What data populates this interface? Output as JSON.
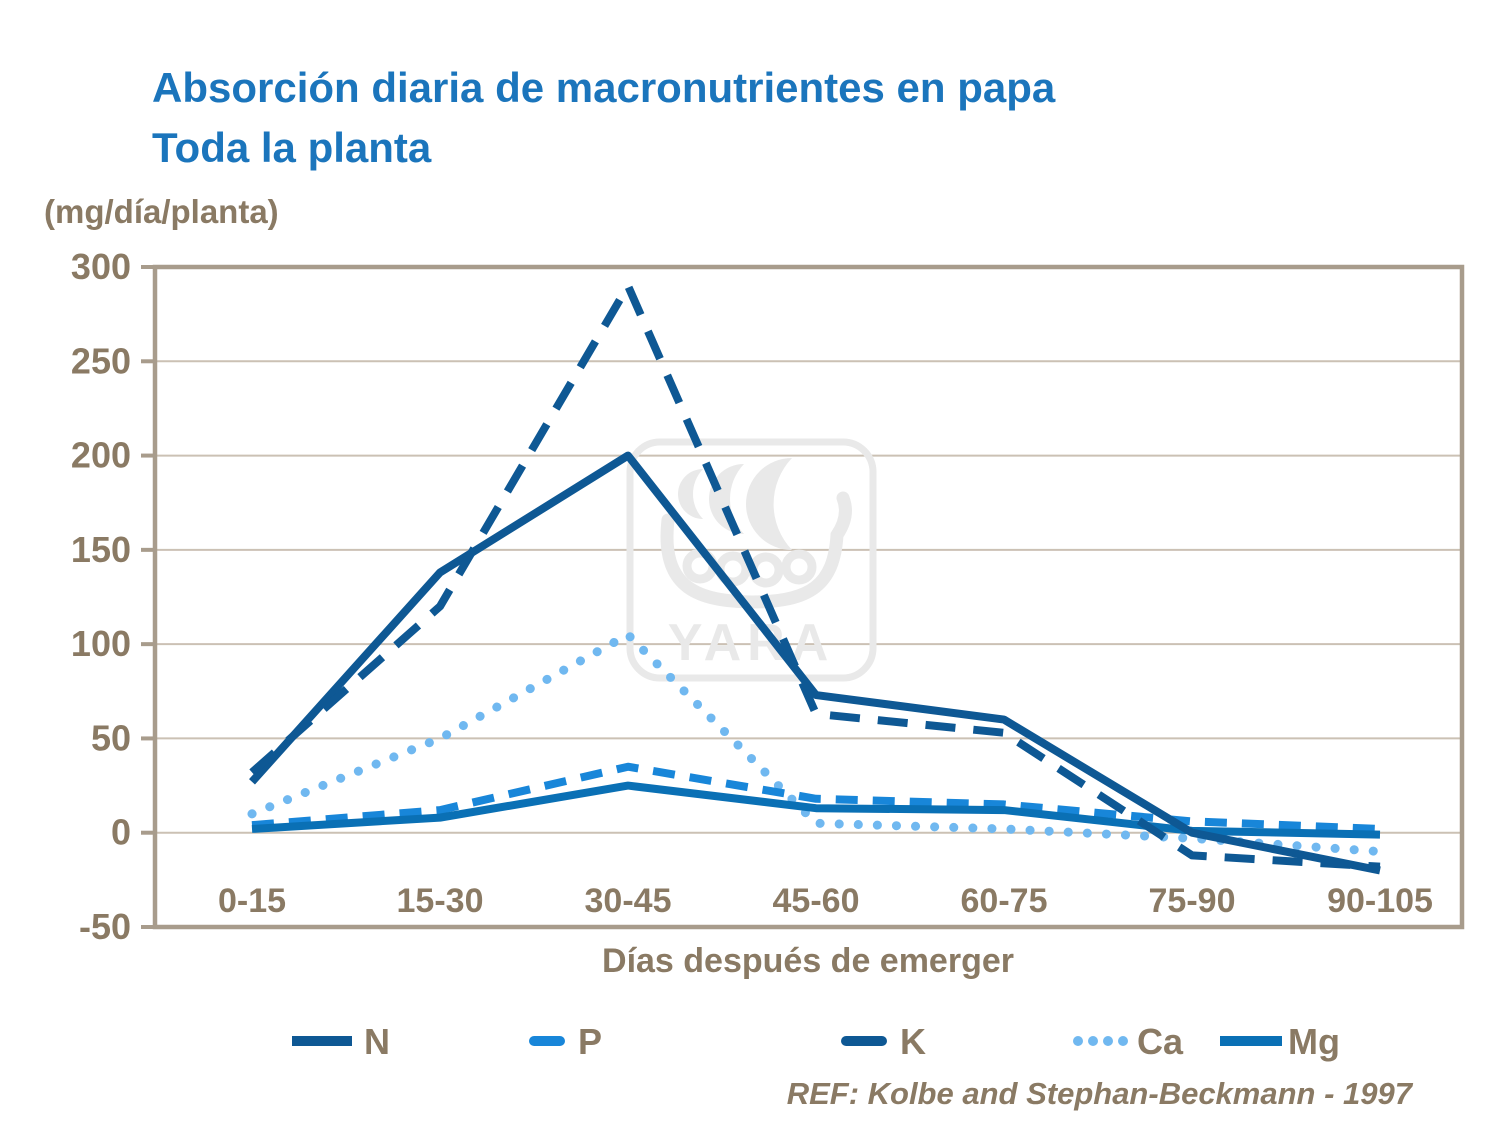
{
  "title": {
    "line1": "Absorción diaria de macronutrientes en papa",
    "line2": "Toda la planta"
  },
  "unit_label": "(mg/día/planta)",
  "x_axis_title": "Días después de emerger",
  "ref_text": "REF: Kolbe and Stephan-Beckmann - 1997",
  "watermark": {
    "text": "YARA"
  },
  "colors": {
    "title_blue": "#1b75bc",
    "label_brown": "#8a7a64",
    "axis_brown": "#a89c8c",
    "grid_brown": "#cbc1b4",
    "dark_blue": "#0e5894",
    "mid_blue": "#0a70b5",
    "bright_blue": "#1886d9",
    "light_blue": "#70b8f0",
    "watermark_gray": "#e9e9e9"
  },
  "chart_data": {
    "type": "line",
    "title": "Absorción diaria de macronutrientes en papa - Toda la planta",
    "xlabel": "Días después de emerger",
    "ylabel": "(mg/día/planta)",
    "categories": [
      "0-15",
      "15-30",
      "30-45",
      "45-60",
      "60-75",
      "75-90",
      "90-105"
    ],
    "yticks": [
      300,
      250,
      200,
      150,
      100,
      50,
      0,
      -50
    ],
    "ylim": [
      -50,
      300
    ],
    "grid": true,
    "legend_position": "bottom",
    "series": [
      {
        "name": "N",
        "style": "solid",
        "color": "#0e5894",
        "values": [
          27,
          138,
          200,
          73,
          60,
          0,
          -20
        ]
      },
      {
        "name": "P",
        "style": "dashed",
        "color": "#1886d9",
        "values": [
          4,
          12,
          35,
          18,
          15,
          6,
          2
        ]
      },
      {
        "name": "K",
        "style": "dashed",
        "color": "#0e5894",
        "values": [
          32,
          120,
          290,
          63,
          53,
          -12,
          -18
        ]
      },
      {
        "name": "Ca",
        "style": "dotted",
        "color": "#70b8f0",
        "values": [
          10,
          50,
          105,
          5,
          2,
          -3,
          -10
        ]
      },
      {
        "name": "Mg",
        "style": "solid",
        "color": "#0a70b5",
        "values": [
          2,
          8,
          25,
          13,
          12,
          1,
          -1
        ]
      }
    ]
  },
  "legend": {
    "items": [
      {
        "label": "N"
      },
      {
        "label": "P"
      },
      {
        "label": "K"
      },
      {
        "label": "Ca"
      },
      {
        "label": "Mg"
      }
    ]
  }
}
